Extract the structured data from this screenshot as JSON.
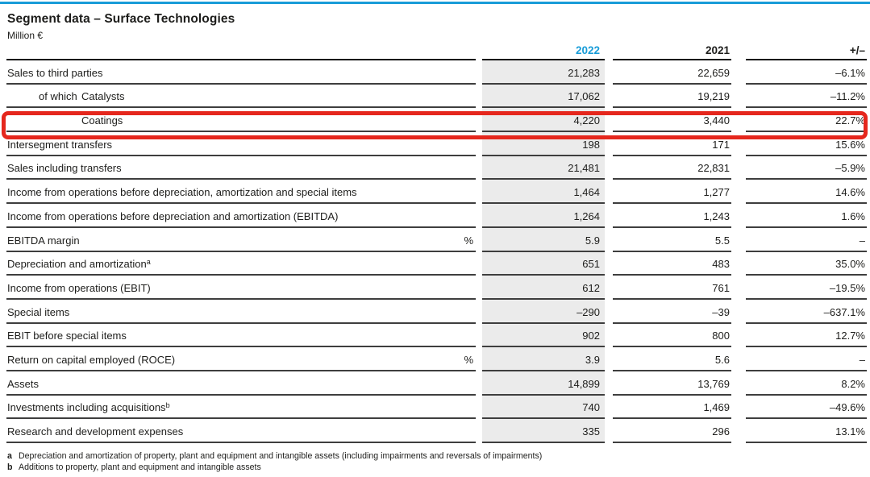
{
  "meta": {
    "title": "Segment data – Surface Technologies",
    "unit": "Million €"
  },
  "colors": {
    "blue": "#189cd8",
    "red": "#e5271d",
    "colgray": "#ebebeb"
  },
  "table": {
    "columns": {
      "label": "",
      "y2022": "2022",
      "y2021": "2021",
      "change": "+/–"
    },
    "rows": [
      {
        "label": "Sales to third parties",
        "v2022": "21,283",
        "v2021": "22,659",
        "chg": "–6.1%"
      },
      {
        "label": "Catalysts",
        "prefix": "of which",
        "v2022": "17,062",
        "v2021": "19,219",
        "chg": "–11.2%"
      },
      {
        "label": "Coatings",
        "indent": 2,
        "highlight": true,
        "v2022": "4,220",
        "v2021": "3,440",
        "chg": "22.7%"
      },
      {
        "label": "Intersegment transfers",
        "v2022": "198",
        "v2021": "171",
        "chg": "15.6%"
      },
      {
        "label": "Sales including transfers",
        "v2022": "21,481",
        "v2021": "22,831",
        "chg": "–5.9%"
      },
      {
        "label": "Income from operations before depreciation, amortization and special items",
        "v2022": "1,464",
        "v2021": "1,277",
        "chg": "14.6%"
      },
      {
        "label": "Income from operations before depreciation and amortization (EBITDA)",
        "v2022": "1,264",
        "v2021": "1,243",
        "chg": "1.6%"
      },
      {
        "label": "EBITDA margin",
        "pct": "%",
        "v2022": "5.9",
        "v2021": "5.5",
        "chg": "–"
      },
      {
        "label": "Depreciation and amortization",
        "sup": "a",
        "v2022": "651",
        "v2021": "483",
        "chg": "35.0%"
      },
      {
        "label": "Income from operations (EBIT)",
        "v2022": "612",
        "v2021": "761",
        "chg": "–19.5%"
      },
      {
        "label": "Special items",
        "v2022": "–290",
        "v2021": "–39",
        "chg": "–637.1%"
      },
      {
        "label": "EBIT before special items",
        "v2022": "902",
        "v2021": "800",
        "chg": "12.7%"
      },
      {
        "label": "Return on capital employed (ROCE)",
        "pct": "%",
        "v2022": "3.9",
        "v2021": "5.6",
        "chg": "–"
      },
      {
        "label": "Assets",
        "v2022": "14,899",
        "v2021": "13,769",
        "chg": "8.2%"
      },
      {
        "label": "Investments including acquisitions",
        "sup": "b",
        "v2022": "740",
        "v2021": "1,469",
        "chg": "–49.6%"
      },
      {
        "label": "Research and development expenses",
        "v2022": "335",
        "v2021": "296",
        "chg": "13.1%"
      }
    ]
  },
  "footnotes": [
    {
      "marker": "a",
      "text": "Depreciation and amortization of property, plant and equipment and intangible assets (including impairments and reversals of impairments)"
    },
    {
      "marker": "b",
      "text": "Additions to property, plant and equipment and intangible assets"
    }
  ]
}
